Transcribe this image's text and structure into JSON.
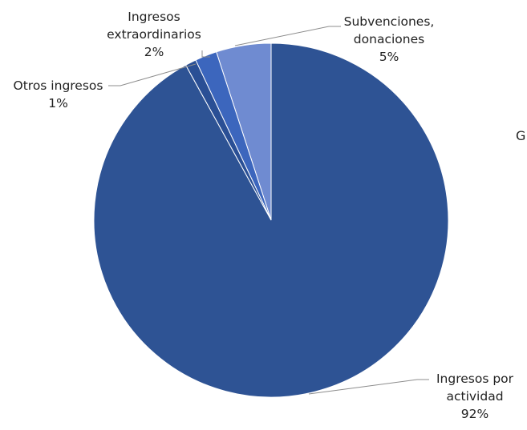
{
  "chart_data": {
    "type": "pie",
    "title": "",
    "slices": [
      {
        "label_lines": [
          "Subvenciones,",
          "donaciones"
        ],
        "value": 5,
        "percent_label": "5%",
        "color": "#6f8bd1"
      },
      {
        "label_lines": [
          "Ingresos",
          "extraordinarios"
        ],
        "value": 2,
        "percent_label": "2%",
        "color": "#3c66bd"
      },
      {
        "label_lines": [
          "Otros ingresos"
        ],
        "value": 1,
        "percent_label": "1%",
        "color": "#2a4f95"
      },
      {
        "label_lines": [
          "Ingresos por",
          "actividad"
        ],
        "value": 92,
        "percent_label": "92%",
        "color": "#2e5394"
      }
    ]
  },
  "edge_text": "G"
}
